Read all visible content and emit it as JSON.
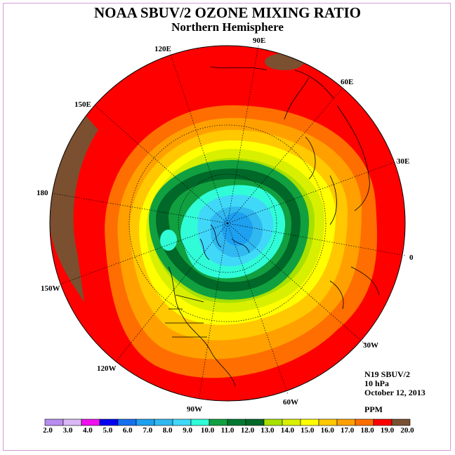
{
  "title": "NOAA SBUV/2 OZONE MIXING RATIO",
  "subtitle": "Northern Hemisphere",
  "lon_labels": [
    "90E",
    "60E",
    "30E",
    "0",
    "30W",
    "60W",
    "90W",
    "120W",
    "150W",
    "180",
    "150E",
    "120E"
  ],
  "info": {
    "instrument": "N19 SBUV/2",
    "level": "10 hPa",
    "date": "October 12, 2013",
    "units": "PPM"
  },
  "colorbar": {
    "ticks": [
      "2.0",
      "3.0",
      "4.0",
      "5.0",
      "6.0",
      "7.0",
      "8.0",
      "9.0",
      "10.0",
      "11.0",
      "12.0",
      "13.0",
      "14.0",
      "15.0",
      "16.0",
      "17.0",
      "18.0",
      "19.0",
      "20.0"
    ],
    "colors": [
      "#b88cf0",
      "#d9b8f5",
      "#f010f0",
      "#0000f0",
      "#1470f0",
      "#1ea0f0",
      "#30b8f0",
      "#40d8f8",
      "#30fcd8",
      "#10a040",
      "#007830",
      "#006828",
      "#a8e000",
      "#d8f000",
      "#ffff00",
      "#ffc800",
      "#ffa000",
      "#ff6e00",
      "#ff0000",
      "#7a5030"
    ]
  },
  "map_fill_colors": {
    "ocean_edge": "#7a5030",
    "ring_20": "#ff0000",
    "ring_19": "#ff6e00",
    "ring_18": "#ffa000",
    "ring_17": "#ffc800",
    "ring_16": "#ffff00",
    "ring_15": "#d8f000",
    "ring_14": "#a8e000",
    "ring_13": "#10a040",
    "ring_12": "#006828",
    "ring_11": "#30fcd8",
    "ring_10": "#40d8f8",
    "ring_9": "#30b8f0",
    "ring_8": "#1ea0f0"
  }
}
